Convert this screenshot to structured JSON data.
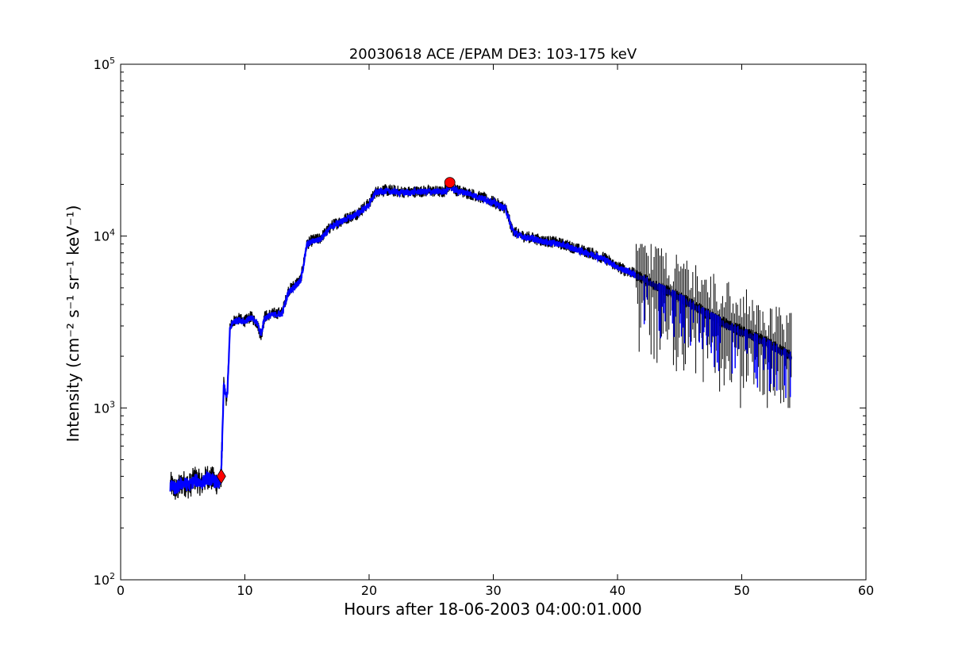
{
  "chart_data": {
    "type": "line",
    "title": "20030618 ACE /EPAM DE3: 103-175 keV",
    "xlabel": "Hours after 18-06-2003 04:00:01.000",
    "ylabel": "Intensity (cm⁻² s⁻¹ sr⁻¹ keV⁻¹)",
    "xlim": [
      0,
      60
    ],
    "ylim": [
      100,
      100000
    ],
    "yscale": "log",
    "grid": false,
    "x_ticks": [
      "0",
      "10",
      "20",
      "30",
      "40",
      "50",
      "60"
    ],
    "x_tick_values": [
      0,
      10,
      20,
      30,
      40,
      50,
      60
    ],
    "y_ticks": [
      {
        "base": "10",
        "exp": "2",
        "value": 100
      },
      {
        "base": "10",
        "exp": "3",
        "value": 1000
      },
      {
        "base": "10",
        "exp": "4",
        "value": 10000
      },
      {
        "base": "10",
        "exp": "5",
        "value": 100000
      }
    ],
    "series": [
      {
        "role": "raw",
        "color": "#000000",
        "x": [
          4.0,
          4.5,
          5.0,
          5.5,
          6.0,
          6.5,
          7.0,
          7.5,
          8.0,
          8.1,
          8.3,
          8.5,
          8.6,
          8.8,
          9.0,
          9.5,
          10.0,
          10.5,
          11.0,
          11.3,
          11.6,
          12.0,
          13.0,
          13.5,
          14.0,
          14.5,
          15.0,
          15.5,
          16.0,
          17.0,
          18.0,
          19.0,
          20.0,
          20.5,
          21.0,
          22.0,
          23.0,
          24.0,
          25.0,
          26.0,
          26.5,
          27.0,
          28.0,
          29.0,
          30.0,
          31.0,
          31.5,
          32.0,
          33.0,
          34.0,
          35.0,
          36.0,
          37.0,
          38.0,
          39.0,
          40.0,
          41.0,
          42.0,
          43.0,
          44.0,
          45.0,
          46.0,
          47.0,
          48.0,
          49.0,
          50.0,
          51.0,
          52.0,
          53.0,
          54.0
        ],
        "y": [
          360,
          330,
          370,
          350,
          390,
          360,
          400,
          380,
          360,
          420,
          1400,
          1100,
          1300,
          2900,
          3200,
          3300,
          3200,
          3400,
          3100,
          2600,
          3400,
          3500,
          3600,
          4800,
          5200,
          5600,
          9000,
          9500,
          9600,
          11500,
          12500,
          13500,
          15500,
          18000,
          18500,
          18300,
          18000,
          18200,
          18300,
          18000,
          20000,
          18500,
          17800,
          16800,
          15800,
          14500,
          11000,
          10200,
          9800,
          9400,
          9200,
          8800,
          8300,
          7900,
          7400,
          6600,
          6200,
          5700,
          5200,
          4800,
          4400,
          4000,
          3600,
          3300,
          3000,
          2800,
          2600,
          2400,
          2200,
          2000
        ]
      },
      {
        "role": "smoothed",
        "color": "#0000ff",
        "x": [
          4.0,
          4.5,
          5.0,
          5.5,
          6.0,
          6.5,
          7.0,
          7.5,
          8.0,
          8.1,
          8.3,
          8.5,
          8.6,
          8.8,
          9.0,
          9.5,
          10.0,
          10.5,
          11.0,
          11.3,
          11.6,
          12.0,
          13.0,
          13.5,
          14.0,
          14.5,
          15.0,
          15.5,
          16.0,
          17.0,
          18.0,
          19.0,
          20.0,
          20.5,
          21.0,
          22.0,
          23.0,
          24.0,
          25.0,
          26.0,
          26.5,
          27.0,
          28.0,
          29.0,
          30.0,
          31.0,
          31.5,
          32.0,
          33.0,
          34.0,
          35.0,
          36.0,
          37.0,
          38.0,
          39.0,
          40.0,
          41.0,
          42.0,
          43.0,
          44.0,
          45.0,
          46.0,
          47.0,
          48.0,
          49.0,
          50.0,
          51.0,
          52.0,
          53.0,
          54.0
        ],
        "y": [
          350,
          340,
          365,
          355,
          380,
          365,
          390,
          375,
          365,
          410,
          1350,
          1150,
          1250,
          2850,
          3150,
          3250,
          3200,
          3350,
          3100,
          2700,
          3350,
          3450,
          3550,
          4700,
          5100,
          5500,
          8900,
          9400,
          9500,
          11400,
          12400,
          13400,
          15200,
          17800,
          18300,
          18100,
          17900,
          18100,
          18200,
          18000,
          19500,
          18400,
          17700,
          16700,
          15700,
          14400,
          11000,
          10100,
          9700,
          9300,
          9100,
          8700,
          8200,
          7800,
          7300,
          6600,
          6150,
          5650,
          5150,
          4750,
          4350,
          3950,
          3550,
          3250,
          2950,
          2750,
          2550,
          2350,
          2150,
          1980
        ]
      }
    ],
    "spike_range": {
      "x_start": 41.5,
      "x_end": 54.0,
      "up_max": 9000,
      "down_min": 1000
    },
    "markers": [
      {
        "shape": "diamond",
        "x": 8.1,
        "y": 400,
        "color": "#ff0000"
      },
      {
        "shape": "circle",
        "x": 26.5,
        "y": 20500,
        "color": "#ff0000"
      }
    ]
  }
}
